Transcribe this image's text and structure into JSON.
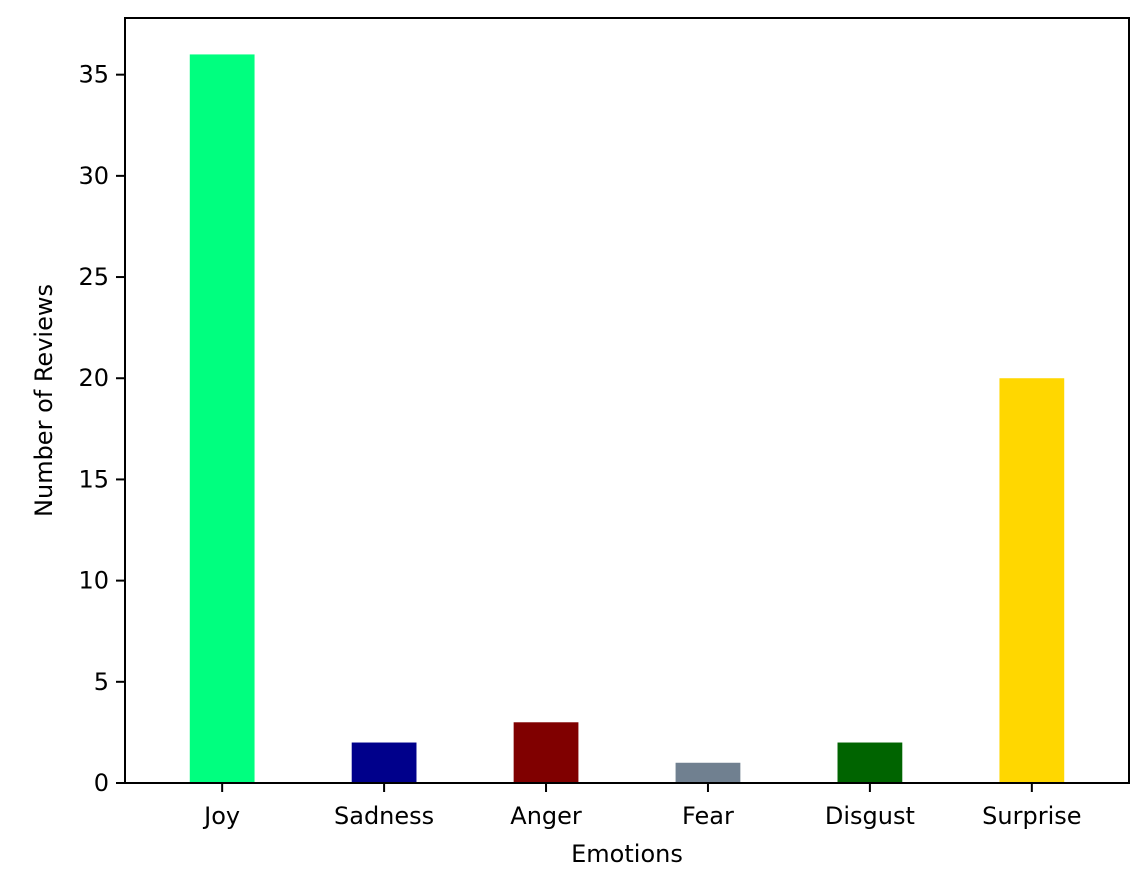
{
  "chart_data": {
    "type": "bar",
    "title": "",
    "xlabel": "Emotions",
    "ylabel": "Number of Reviews",
    "categories": [
      "Joy",
      "Sadness",
      "Anger",
      "Fear",
      "Disgust",
      "Surprise"
    ],
    "values": [
      36,
      2,
      3,
      1,
      2,
      20
    ],
    "colors": [
      "#00ff7f",
      "#00008b",
      "#800000",
      "#708090",
      "#006400",
      "#ffd700"
    ],
    "ylim": [
      0,
      37.8
    ],
    "yticks": [
      0,
      5,
      10,
      15,
      20,
      25,
      30,
      35
    ],
    "grid": false,
    "legend": "none"
  }
}
